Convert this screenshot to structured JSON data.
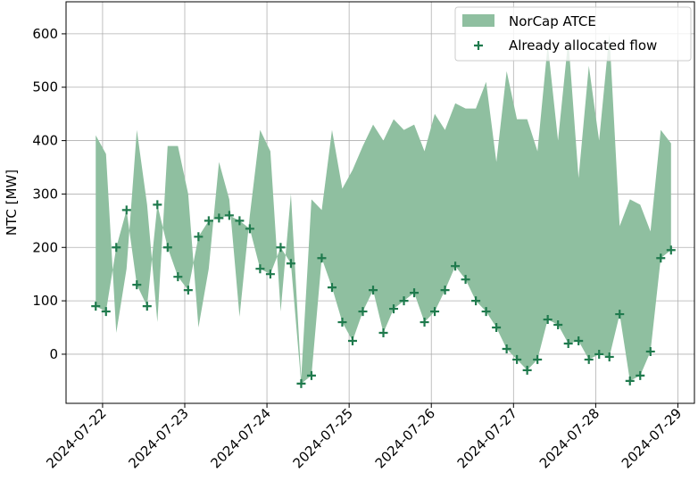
{
  "chart_data": {
    "type": "area-scatter",
    "ylabel": "NTC [MW]",
    "x": [
      "2024-07-21T22:00",
      "2024-07-22T01:00",
      "2024-07-22T04:00",
      "2024-07-22T07:00",
      "2024-07-22T10:00",
      "2024-07-22T13:00",
      "2024-07-22T16:00",
      "2024-07-22T19:00",
      "2024-07-22T22:00",
      "2024-07-23T01:00",
      "2024-07-23T04:00",
      "2024-07-23T07:00",
      "2024-07-23T10:00",
      "2024-07-23T13:00",
      "2024-07-23T16:00",
      "2024-07-23T19:00",
      "2024-07-23T22:00",
      "2024-07-24T01:00",
      "2024-07-24T04:00",
      "2024-07-24T07:00",
      "2024-07-24T10:00",
      "2024-07-24T13:00",
      "2024-07-24T16:00",
      "2024-07-24T19:00",
      "2024-07-24T22:00",
      "2024-07-25T01:00",
      "2024-07-25T04:00",
      "2024-07-25T07:00",
      "2024-07-25T10:00",
      "2024-07-25T13:00",
      "2024-07-25T16:00",
      "2024-07-25T19:00",
      "2024-07-25T22:00",
      "2024-07-26T01:00",
      "2024-07-26T04:00",
      "2024-07-26T07:00",
      "2024-07-26T10:00",
      "2024-07-26T13:00",
      "2024-07-26T16:00",
      "2024-07-26T19:00",
      "2024-07-26T22:00",
      "2024-07-27T01:00",
      "2024-07-27T04:00",
      "2024-07-27T07:00",
      "2024-07-27T10:00",
      "2024-07-27T13:00",
      "2024-07-27T16:00",
      "2024-07-27T19:00",
      "2024-07-27T22:00",
      "2024-07-28T01:00",
      "2024-07-28T04:00",
      "2024-07-28T07:00",
      "2024-07-28T10:00",
      "2024-07-28T13:00",
      "2024-07-28T16:00",
      "2024-07-28T19:00",
      "2024-07-28T22:00"
    ],
    "series": [
      {
        "name": "NorCap ATCE",
        "color": "#8fbfa0",
        "stacked_on": 1,
        "values": [
          320,
          295,
          -160,
          -110,
          290,
          190,
          -220,
          190,
          245,
          180,
          -170,
          -90,
          105,
          30,
          -180,
          25,
          260,
          230,
          -120,
          130,
          10,
          330,
          90,
          295,
          250,
          320,
          310,
          310,
          360,
          355,
          320,
          315,
          320,
          370,
          300,
          305,
          320,
          360,
          430,
          310,
          520,
          450,
          470,
          390,
          515,
          345,
          570,
          305,
          550,
          400,
          605,
          165,
          340,
          320,
          225,
          240,
          200
        ]
      },
      {
        "name": "Already allocated flow",
        "color": "#1f7a4d",
        "values": [
          90,
          80,
          200,
          270,
          130,
          90,
          280,
          200,
          145,
          120,
          220,
          250,
          255,
          260,
          250,
          235,
          160,
          150,
          200,
          170,
          -55,
          -40,
          180,
          125,
          60,
          25,
          80,
          120,
          40,
          85,
          100,
          115,
          60,
          80,
          120,
          165,
          140,
          100,
          80,
          50,
          10,
          -10,
          -30,
          -10,
          65,
          55,
          20,
          25,
          -10,
          0,
          -5,
          75,
          -50,
          -40,
          5,
          180,
          195
        ]
      }
    ],
    "xlim": [
      "2024-07-21T13:20",
      "2024-07-29T04:50"
    ],
    "xticks": [
      "2024-07-22",
      "2024-07-23",
      "2024-07-24",
      "2024-07-25",
      "2024-07-26",
      "2024-07-27",
      "2024-07-28",
      "2024-07-29"
    ],
    "ylim": [
      -92,
      660
    ],
    "yticks": [
      0,
      100,
      200,
      300,
      400,
      500,
      600
    ],
    "grid": true,
    "legend": "upper right"
  }
}
